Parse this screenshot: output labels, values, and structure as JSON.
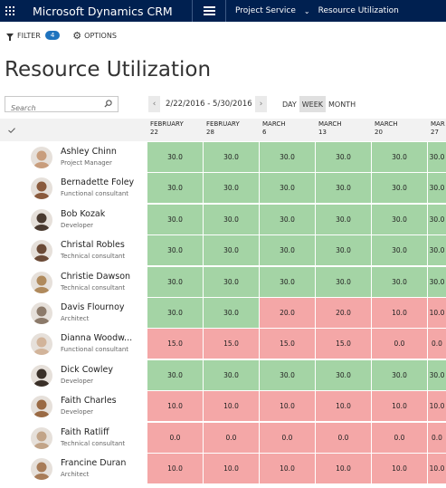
{
  "app": {
    "title": "Microsoft Dynamics CRM",
    "area": "Project Service",
    "page": "Resource Utilization"
  },
  "commands": {
    "filter_label": "FILTER",
    "filter_count": "4",
    "options_label": "OPTIONS"
  },
  "page_title": "Resource Utilization",
  "search": {
    "placeholder": "Search"
  },
  "date_range": "2/22/2016 - 5/30/2016",
  "views": [
    "DAY",
    "WEEK",
    "MONTH"
  ],
  "active_view": "WEEK",
  "columns": [
    {
      "month": "FEBRUARY",
      "day": "22"
    },
    {
      "month": "FEBRUARY",
      "day": "28"
    },
    {
      "month": "MARCH",
      "day": "6"
    },
    {
      "month": "MARCH",
      "day": "13"
    },
    {
      "month": "MARCH",
      "day": "20"
    },
    {
      "month": "MAR",
      "day": "27"
    }
  ],
  "colors": {
    "available": "#a4d4a5",
    "overbooked": "#f4a7a7",
    "header_bar": "#002050",
    "accent": "#1e73be"
  },
  "resources": [
    {
      "name": "Ashley Chinn",
      "role": "Project Manager",
      "values": [
        "30.0",
        "30.0",
        "30.0",
        "30.0",
        "30.0",
        "30.0"
      ],
      "status": [
        "g",
        "g",
        "g",
        "g",
        "g",
        "g"
      ],
      "avatar_color": "#c89d7c"
    },
    {
      "name": "Bernadette Foley",
      "role": "Functional consultant",
      "values": [
        "30.0",
        "30.0",
        "30.0",
        "30.0",
        "30.0",
        "30.0"
      ],
      "status": [
        "g",
        "g",
        "g",
        "g",
        "g",
        "g"
      ],
      "avatar_color": "#8a5a3c"
    },
    {
      "name": "Bob Kozak",
      "role": "Developer",
      "values": [
        "30.0",
        "30.0",
        "30.0",
        "30.0",
        "30.0",
        "30.0"
      ],
      "status": [
        "g",
        "g",
        "g",
        "g",
        "g",
        "g"
      ],
      "avatar_color": "#4a3a30"
    },
    {
      "name": "Christal Robles",
      "role": "Technical consultant",
      "values": [
        "30.0",
        "30.0",
        "30.0",
        "30.0",
        "30.0",
        "30.0"
      ],
      "status": [
        "g",
        "g",
        "g",
        "g",
        "g",
        "g"
      ],
      "avatar_color": "#6b4a36"
    },
    {
      "name": "Christie Dawson",
      "role": "Technical consultant",
      "values": [
        "30.0",
        "30.0",
        "30.0",
        "30.0",
        "30.0",
        "30.0"
      ],
      "status": [
        "g",
        "g",
        "g",
        "g",
        "g",
        "g"
      ],
      "avatar_color": "#b08a5c"
    },
    {
      "name": "Davis Flournoy",
      "role": "Architect",
      "values": [
        "30.0",
        "30.0",
        "20.0",
        "20.0",
        "10.0",
        "10.0"
      ],
      "status": [
        "g",
        "g",
        "r",
        "r",
        "r",
        "r"
      ],
      "avatar_color": "#8c7a6a"
    },
    {
      "name": "Dianna Woodw...",
      "role": "Functional consultant",
      "values": [
        "15.0",
        "15.0",
        "15.0",
        "15.0",
        "0.0",
        "0.0"
      ],
      "status": [
        "r",
        "r",
        "r",
        "r",
        "r",
        "r"
      ],
      "avatar_color": "#d2b49a"
    },
    {
      "name": "Dick Cowley",
      "role": "Developer",
      "values": [
        "30.0",
        "30.0",
        "30.0",
        "30.0",
        "30.0",
        "30.0"
      ],
      "status": [
        "g",
        "g",
        "g",
        "g",
        "g",
        "g"
      ],
      "avatar_color": "#3a3028"
    },
    {
      "name": "Faith Charles",
      "role": "Developer",
      "values": [
        "10.0",
        "10.0",
        "10.0",
        "10.0",
        "10.0",
        "10.0"
      ],
      "status": [
        "r",
        "r",
        "r",
        "r",
        "r",
        "r"
      ],
      "avatar_color": "#9a6a44"
    },
    {
      "name": "Faith Ratliff",
      "role": "Technical consultant",
      "values": [
        "0.0",
        "0.0",
        "0.0",
        "0.0",
        "0.0",
        "0.0"
      ],
      "status": [
        "r",
        "r",
        "r",
        "r",
        "r",
        "r"
      ],
      "avatar_color": "#c2a488"
    },
    {
      "name": "Francine Duran",
      "role": "Architect",
      "values": [
        "10.0",
        "10.0",
        "10.0",
        "10.0",
        "10.0",
        "10.0"
      ],
      "status": [
        "r",
        "r",
        "r",
        "r",
        "r",
        "r"
      ],
      "avatar_color": "#a87c58"
    }
  ]
}
